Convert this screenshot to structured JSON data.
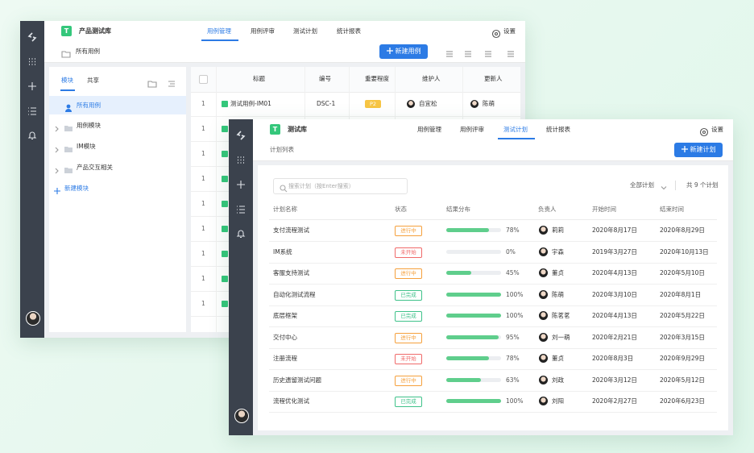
{
  "back_window": {
    "logo": "T",
    "project": "产品测试库",
    "tabs": [
      "用例管理",
      "用例评审",
      "测试计划",
      "统计报表"
    ],
    "settings": "设置",
    "breadcrumb": "所有用例",
    "new_button": "新建用例",
    "tree_tabs": [
      "模块",
      "共享"
    ],
    "tree": [
      "所有用例",
      "用例模块",
      "IM模块",
      "产品交互相关"
    ],
    "new_module": "新建模块",
    "table": {
      "headers": [
        "标题",
        "编号",
        "重要程度",
        "维护人",
        "更新人"
      ],
      "rows": [
        {
          "index": 1,
          "title": "测试用例-IM01",
          "code": "DSC-1",
          "priority": "P2",
          "maintainer": "自宜松",
          "updater": "陈萌"
        },
        {
          "index": 1
        },
        {
          "index": 1
        },
        {
          "index": 1
        },
        {
          "index": 1
        },
        {
          "index": 1
        },
        {
          "index": 1
        },
        {
          "index": 1
        },
        {
          "index": 1
        }
      ]
    }
  },
  "front_window": {
    "logo": "T",
    "project": "测试库",
    "tabs": [
      "用例管理",
      "用例评审",
      "测试计划",
      "统计报表"
    ],
    "settings": "设置",
    "breadcrumb": "计划列表",
    "new_button": "新建计划",
    "search_placeholder": "搜索计划（按Enter搜索）",
    "filter": "全部计划",
    "total": "共 9 个计划",
    "table": {
      "headers": [
        "计划名称",
        "状态",
        "结果分布",
        "负责人",
        "开始时间",
        "结束时间"
      ],
      "rows": [
        {
          "name": "支付流程测试",
          "status": "进行中",
          "progress": 78,
          "progress_label": "78%",
          "owner": "莉莉",
          "start": "2020年8月17日",
          "end": "2020年8月29日"
        },
        {
          "name": "IM系统",
          "status": "未开始",
          "progress": 0,
          "progress_label": "0%",
          "owner": "宇森",
          "start": "2019年3月27日",
          "end": "2020年10月13日"
        },
        {
          "name": "客服支持测试",
          "status": "进行中",
          "progress": 45,
          "progress_label": "45%",
          "owner": "董贞",
          "start": "2020年4月13日",
          "end": "2020年5月10日"
        },
        {
          "name": "自动化测试流程",
          "status": "已完成",
          "progress": 100,
          "progress_label": "100%",
          "owner": "陈萌",
          "start": "2020年3月10日",
          "end": "2020年8月1日"
        },
        {
          "name": "底层框架",
          "status": "已完成",
          "progress": 100,
          "progress_label": "100%",
          "owner": "陈茗茗",
          "start": "2020年4月13日",
          "end": "2020年5月22日"
        },
        {
          "name": "交付中心",
          "status": "进行中",
          "progress": 95,
          "progress_label": "95%",
          "owner": "刘一萌",
          "start": "2020年2月21日",
          "end": "2020年3月15日"
        },
        {
          "name": "注册流程",
          "status": "未开始",
          "progress": 78,
          "progress_label": "78%",
          "owner": "董贞",
          "start": "2020年8月3日",
          "end": "2020年9月29日"
        },
        {
          "name": "历史遗留测试问题",
          "status": "进行中",
          "progress": 63,
          "progress_label": "63%",
          "owner": "刘政",
          "start": "2020年3月12日",
          "end": "2020年5月12日"
        },
        {
          "name": "流程优化测试",
          "status": "已完成",
          "progress": 100,
          "progress_label": "100%",
          "owner": "刘阳",
          "start": "2020年2月27日",
          "end": "2020年6月23日"
        }
      ]
    }
  }
}
